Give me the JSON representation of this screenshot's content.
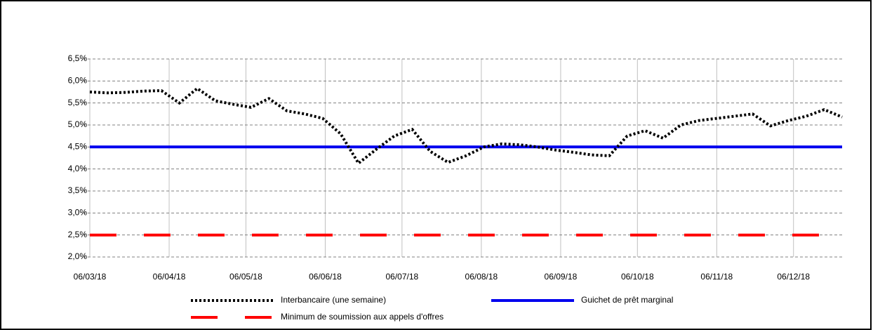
{
  "chart_data": {
    "type": "line",
    "x": [
      "2018-03-06",
      "2018-03-13",
      "2018-03-20",
      "2018-03-27",
      "2018-04-03",
      "2018-04-10",
      "2018-04-17",
      "2018-04-24",
      "2018-05-01",
      "2018-05-08",
      "2018-05-15",
      "2018-05-22",
      "2018-05-29",
      "2018-06-05",
      "2018-06-12",
      "2018-06-19",
      "2018-06-26",
      "2018-07-03",
      "2018-07-10",
      "2018-07-17",
      "2018-07-24",
      "2018-07-31",
      "2018-08-07",
      "2018-08-14",
      "2018-08-21",
      "2018-08-28",
      "2018-09-04",
      "2018-09-11",
      "2018-09-18",
      "2018-09-25",
      "2018-10-02",
      "2018-10-09",
      "2018-10-16",
      "2018-10-23",
      "2018-10-30",
      "2018-11-06",
      "2018-11-13",
      "2018-11-20",
      "2018-11-27",
      "2018-12-04",
      "2018-12-11",
      "2018-12-18",
      "2018-12-25"
    ],
    "series": [
      {
        "name": "Interbancaire (une semaine)",
        "color": "#000000",
        "dash": "dotted",
        "values": [
          5.75,
          5.73,
          5.74,
          5.77,
          5.78,
          5.5,
          5.83,
          5.55,
          5.47,
          5.4,
          5.6,
          5.32,
          5.25,
          5.15,
          4.8,
          4.13,
          4.45,
          4.75,
          4.9,
          4.4,
          4.15,
          4.3,
          4.5,
          4.57,
          4.55,
          4.5,
          4.43,
          4.38,
          4.32,
          4.3,
          4.75,
          4.87,
          4.7,
          5.0,
          5.1,
          5.15,
          5.2,
          5.25,
          4.98,
          5.1,
          5.2,
          5.35,
          5.18
        ]
      },
      {
        "name": "Guichet de prêt marginal",
        "color": "#0000ee",
        "dash": "solid",
        "values": [
          4.5,
          4.5,
          4.5,
          4.5,
          4.5,
          4.5,
          4.5,
          4.5,
          4.5,
          4.5,
          4.5,
          4.5,
          4.5,
          4.5,
          4.5,
          4.5,
          4.5,
          4.5,
          4.5,
          4.5,
          4.5,
          4.5,
          4.5,
          4.5,
          4.5,
          4.5,
          4.5,
          4.5,
          4.5,
          4.5,
          4.5,
          4.5,
          4.5,
          4.5,
          4.5,
          4.5,
          4.5,
          4.5,
          4.5,
          4.5,
          4.5,
          4.5,
          4.5
        ]
      },
      {
        "name": "Minimum de soumission aux appels d'offres",
        "color": "#ff0000",
        "dash": "dashed",
        "values": [
          2.5,
          2.5,
          2.5,
          2.5,
          2.5,
          2.5,
          2.5,
          2.5,
          2.5,
          2.5,
          2.5,
          2.5,
          2.5,
          2.5,
          2.5,
          2.5,
          2.5,
          2.5,
          2.5,
          2.5,
          2.5,
          2.5,
          2.5,
          2.5,
          2.5,
          2.5,
          2.5,
          2.5,
          2.5,
          2.5,
          2.5,
          2.5,
          2.5,
          2.5,
          2.5,
          2.5,
          2.5,
          2.5,
          2.5,
          2.5,
          2.5,
          2.5,
          2.5
        ]
      }
    ],
    "xlim": [
      "2018-03-06",
      "2018-12-25"
    ],
    "xticks": [
      {
        "value": "2018-03-06",
        "label": "06/03/18"
      },
      {
        "value": "2018-04-06",
        "label": "06/04/18"
      },
      {
        "value": "2018-05-06",
        "label": "06/05/18"
      },
      {
        "value": "2018-06-06",
        "label": "06/06/18"
      },
      {
        "value": "2018-07-06",
        "label": "06/07/18"
      },
      {
        "value": "2018-08-06",
        "label": "06/08/18"
      },
      {
        "value": "2018-09-06",
        "label": "06/09/18"
      },
      {
        "value": "2018-10-06",
        "label": "06/10/18"
      },
      {
        "value": "2018-11-06",
        "label": "06/11/18"
      },
      {
        "value": "2018-12-06",
        "label": "06/12/18"
      }
    ],
    "ylim": [
      2.0,
      6.5
    ],
    "yticks": [
      {
        "value": 2.0,
        "label": "2,0%"
      },
      {
        "value": 2.5,
        "label": "2,5%"
      },
      {
        "value": 3.0,
        "label": "3,0%"
      },
      {
        "value": 3.5,
        "label": "3,5%"
      },
      {
        "value": 4.0,
        "label": "4,0%"
      },
      {
        "value": 4.5,
        "label": "4,5%"
      },
      {
        "value": 5.0,
        "label": "5,0%"
      },
      {
        "value": 5.5,
        "label": "5,5%"
      },
      {
        "value": 6.0,
        "label": "6,0%"
      },
      {
        "value": 6.5,
        "label": "6,5%"
      }
    ],
    "grid": true
  }
}
